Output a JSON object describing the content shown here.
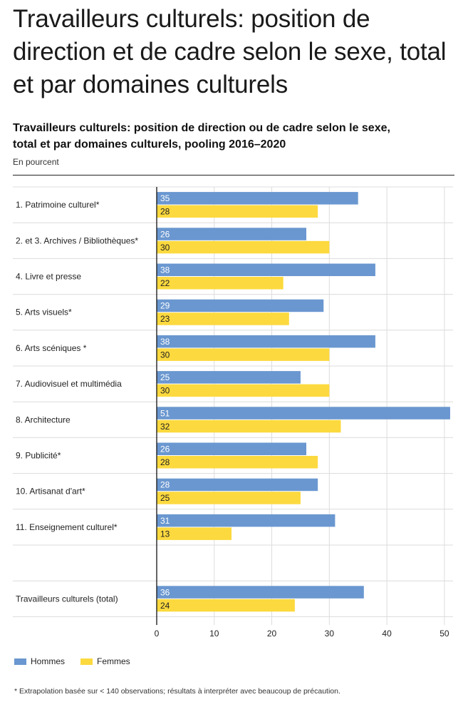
{
  "header": {
    "title": "Travailleurs culturels: position de direction et de cadre selon le sexe, total et par domaines culturels"
  },
  "chart_data": {
    "type": "bar",
    "orientation": "horizontal",
    "title": "Travailleurs culturels: position de direction ou de cadre selon le sexe, total et par domaines culturels, pooling 2016–2020",
    "subtitle": "En pourcent",
    "categories": [
      "1. Patrimoine culturel*",
      "2. et 3. Archives / Bibliothèques*",
      "4. Livre et presse",
      "5. Arts visuels*",
      "6. Arts scéniques *",
      "7. Audiovisuel et multimédia",
      "8. Architecture",
      "9. Publicité*",
      "10. Artisanat d'art*",
      "11. Enseignement culturel*",
      "",
      "Travailleurs culturels (total)"
    ],
    "series": [
      {
        "name": "Hommes",
        "color": "#6a97d0",
        "values": [
          35,
          26,
          38,
          29,
          38,
          25,
          51,
          26,
          28,
          31,
          null,
          36
        ]
      },
      {
        "name": "Femmes",
        "color": "#fcd93e",
        "values": [
          28,
          30,
          22,
          23,
          30,
          30,
          32,
          28,
          25,
          13,
          null,
          24
        ]
      }
    ],
    "x_ticks": [
      0,
      10,
      20,
      30,
      40,
      50
    ],
    "xlim": [
      0,
      51.5
    ],
    "grid": true,
    "legend_position": "bottom-left"
  },
  "footnote": "* Extrapolation basée sur < 140 observations; résultats à interpréter avec beaucoup de précaution."
}
